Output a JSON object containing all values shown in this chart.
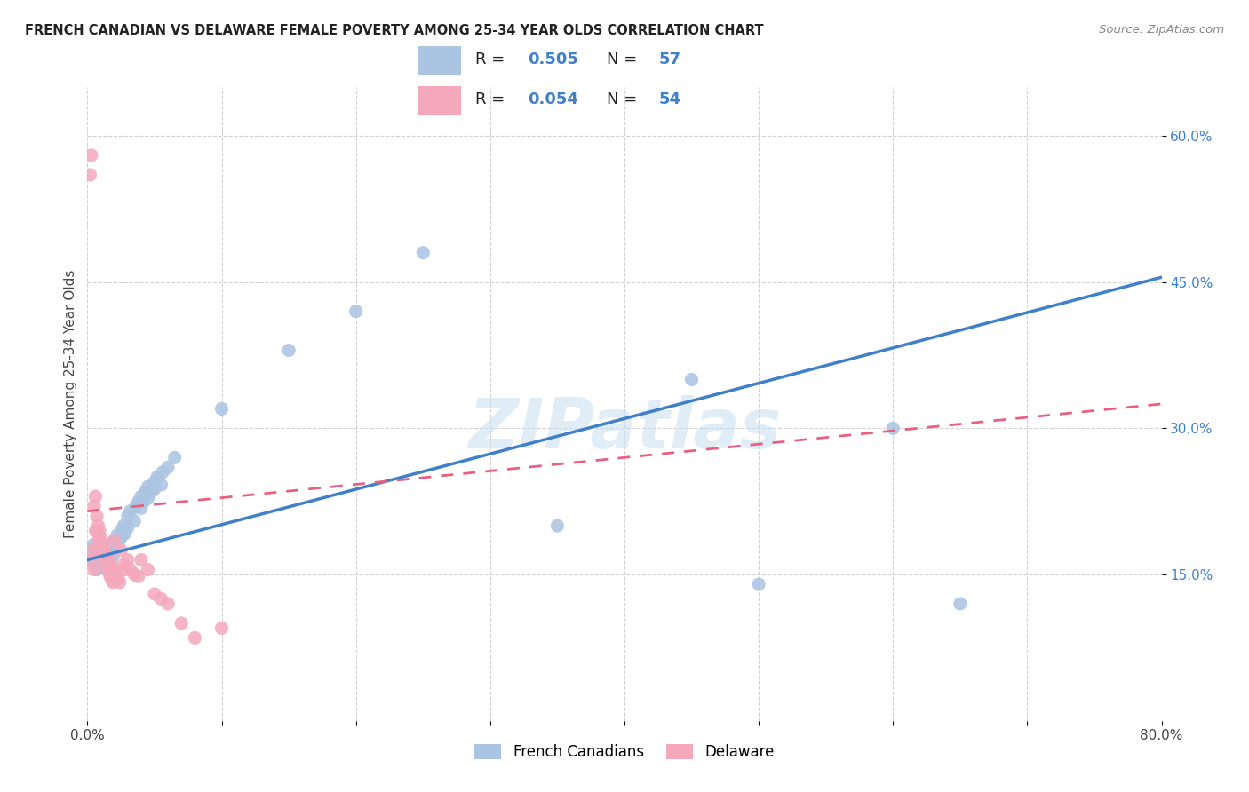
{
  "title": "FRENCH CANADIAN VS DELAWARE FEMALE POVERTY AMONG 25-34 YEAR OLDS CORRELATION CHART",
  "source": "Source: ZipAtlas.com",
  "ylabel": "Female Poverty Among 25-34 Year Olds",
  "xlim": [
    0.0,
    0.8
  ],
  "ylim": [
    0.0,
    0.65
  ],
  "ytick_positions": [
    0.15,
    0.3,
    0.45,
    0.6
  ],
  "ytick_labels": [
    "15.0%",
    "30.0%",
    "45.0%",
    "60.0%"
  ],
  "french_canadian_color": "#aac4e2",
  "delaware_color": "#f5a8bc",
  "french_canadian_line_color": "#4080c8",
  "delaware_line_color": "#e86080",
  "R_french": 0.505,
  "N_french": 57,
  "R_delaware": 0.054,
  "N_delaware": 54,
  "watermark": "ZIPatlas",
  "french_canadian_x": [
    0.002,
    0.003,
    0.004,
    0.005,
    0.006,
    0.007,
    0.008,
    0.009,
    0.01,
    0.01,
    0.011,
    0.012,
    0.013,
    0.014,
    0.015,
    0.015,
    0.016,
    0.017,
    0.018,
    0.019,
    0.02,
    0.021,
    0.022,
    0.023,
    0.025,
    0.025,
    0.027,
    0.028,
    0.03,
    0.03,
    0.032,
    0.035,
    0.036,
    0.038,
    0.04,
    0.04,
    0.042,
    0.043,
    0.045,
    0.045,
    0.048,
    0.05,
    0.05,
    0.052,
    0.055,
    0.056,
    0.06,
    0.065,
    0.1,
    0.15,
    0.2,
    0.25,
    0.35,
    0.45,
    0.5,
    0.6,
    0.65
  ],
  "french_canadian_y": [
    0.175,
    0.165,
    0.18,
    0.16,
    0.17,
    0.155,
    0.168,
    0.162,
    0.175,
    0.158,
    0.172,
    0.165,
    0.178,
    0.16,
    0.17,
    0.155,
    0.173,
    0.165,
    0.18,
    0.168,
    0.185,
    0.178,
    0.19,
    0.182,
    0.195,
    0.188,
    0.2,
    0.192,
    0.21,
    0.198,
    0.215,
    0.205,
    0.22,
    0.225,
    0.218,
    0.23,
    0.225,
    0.235,
    0.228,
    0.24,
    0.235,
    0.245,
    0.238,
    0.25,
    0.242,
    0.255,
    0.26,
    0.27,
    0.32,
    0.38,
    0.42,
    0.48,
    0.2,
    0.35,
    0.14,
    0.3,
    0.12
  ],
  "delaware_x": [
    0.002,
    0.003,
    0.003,
    0.004,
    0.005,
    0.005,
    0.006,
    0.006,
    0.007,
    0.007,
    0.008,
    0.008,
    0.009,
    0.009,
    0.01,
    0.01,
    0.011,
    0.011,
    0.012,
    0.012,
    0.013,
    0.013,
    0.014,
    0.014,
    0.015,
    0.015,
    0.016,
    0.016,
    0.017,
    0.017,
    0.018,
    0.018,
    0.019,
    0.019,
    0.02,
    0.021,
    0.022,
    0.023,
    0.024,
    0.025,
    0.027,
    0.028,
    0.03,
    0.032,
    0.035,
    0.038,
    0.04,
    0.045,
    0.05,
    0.055,
    0.06,
    0.07,
    0.08,
    0.1
  ],
  "delaware_y": [
    0.56,
    0.58,
    0.165,
    0.175,
    0.155,
    0.22,
    0.195,
    0.23,
    0.21,
    0.195,
    0.2,
    0.185,
    0.195,
    0.178,
    0.188,
    0.175,
    0.182,
    0.17,
    0.178,
    0.168,
    0.175,
    0.165,
    0.17,
    0.16,
    0.168,
    0.155,
    0.165,
    0.152,
    0.16,
    0.148,
    0.158,
    0.145,
    0.155,
    0.142,
    0.185,
    0.15,
    0.148,
    0.145,
    0.142,
    0.175,
    0.16,
    0.155,
    0.165,
    0.155,
    0.15,
    0.148,
    0.165,
    0.155,
    0.13,
    0.125,
    0.12,
    0.1,
    0.085,
    0.095
  ]
}
